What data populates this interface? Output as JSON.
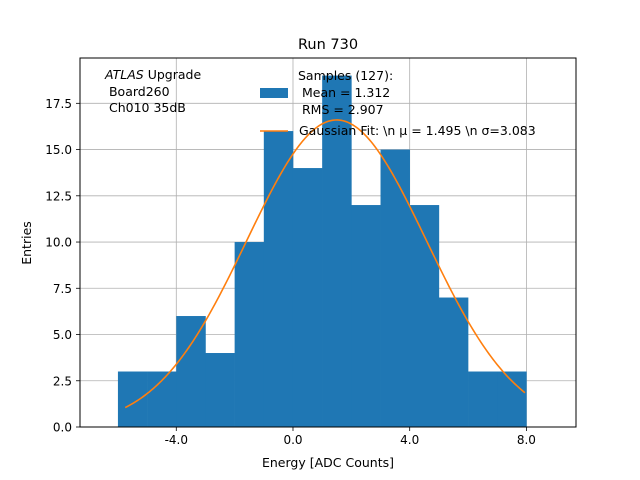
{
  "chart_data": {
    "type": "bar",
    "title": "Run 730",
    "xlabel": "Energy [ADC Counts]",
    "ylabel": "Entries",
    "xlim": [
      -7.3,
      9.7
    ],
    "ylim": [
      0,
      19.95
    ],
    "grid": true,
    "xticks": [
      -4.0,
      0.0,
      4.0,
      8.0
    ],
    "xtick_labels": [
      "-4.0",
      "0.0",
      "4.0",
      "8.0"
    ],
    "yticks": [
      0,
      2.5,
      5,
      7.5,
      10,
      12.5,
      15,
      17.5
    ],
    "ytick_labels": [
      "0.0",
      "2.5",
      "5.0",
      "7.5",
      "10.0",
      "12.5",
      "15.0",
      "17.5"
    ],
    "bin_edges": [
      -6,
      -5,
      -4,
      -3,
      -2,
      -1,
      0,
      1,
      2,
      3,
      4,
      5,
      6,
      7,
      8
    ],
    "series": [
      {
        "name": "Samples (127):",
        "kind": "histogram",
        "color": "#1f77b4",
        "values": [
          3,
          3,
          6,
          4,
          10,
          16,
          14,
          19,
          12,
          15,
          12,
          7,
          3,
          3
        ]
      },
      {
        "name": "Gaussian Fit",
        "kind": "line",
        "color": "#ff7f0e",
        "mu": 1.495,
        "sigma": 3.083,
        "amplitude": 16.6,
        "x_range": [
          -5.75,
          7.95
        ]
      }
    ],
    "legend": {
      "placement": "top-center",
      "entries": [
        {
          "line1": "Samples (127):",
          "line2": " Mean = 1.312",
          "line3": " RMS = 2.907"
        },
        {
          "label": "Gaussian Fit: \\n μ = 1.495 \\n σ=3.083"
        }
      ]
    },
    "annotation": {
      "italic": "ATLAS",
      "rest": " Upgrade",
      "line2": " Board260",
      "line3": " Ch010 35dB"
    }
  }
}
